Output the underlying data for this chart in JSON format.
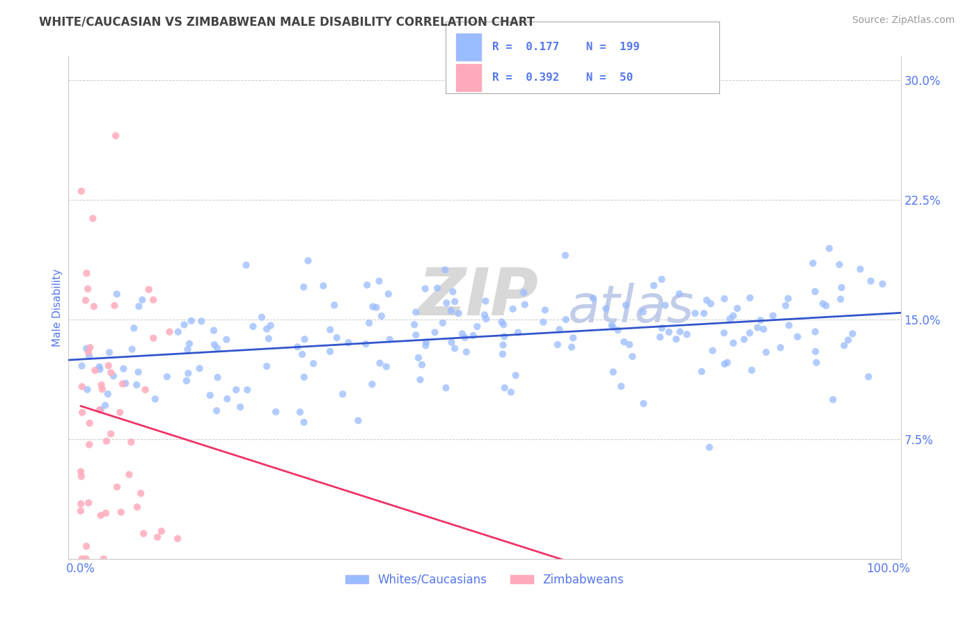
{
  "title": "WHITE/CAUCASIAN VS ZIMBABWEAN MALE DISABILITY CORRELATION CHART",
  "source": "Source: ZipAtlas.com",
  "ylabel": "Male Disability",
  "y_tick_labels": [
    "7.5%",
    "15.0%",
    "22.5%",
    "30.0%"
  ],
  "y_tick_values": [
    0.075,
    0.15,
    0.225,
    0.3
  ],
  "xlim": [
    -0.015,
    1.015
  ],
  "ylim": [
    0.0,
    0.315
  ],
  "background_color": "#ffffff",
  "grid_color": "#bbbbbb",
  "watermark_zip": "ZIP",
  "watermark_atlas": "atlas",
  "blue_color": "#99bbff",
  "pink_color": "#ffaabb",
  "blue_line_color": "#3355cc",
  "pink_line_color": "#ee3366",
  "legend_blue_label": "Whites/Caucasians",
  "legend_pink_label": "Zimbabweans",
  "R_blue": 0.177,
  "N_blue": 199,
  "R_pink": 0.392,
  "N_pink": 50,
  "title_color": "#444444",
  "tick_color": "#5577ee",
  "axis_label_color": "#5577ee"
}
